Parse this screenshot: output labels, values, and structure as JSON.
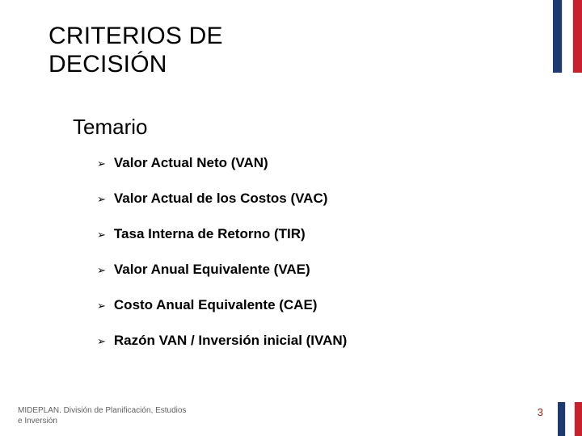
{
  "colors": {
    "flag_blue": "#1f3a6e",
    "flag_white": "#ffffff",
    "flag_red": "#c8202c",
    "text_black": "#000000",
    "footer_gray": "#606060",
    "pagenum_red": "#a02010",
    "background": "#ffffff"
  },
  "typography": {
    "title_fontsize": 30,
    "subtitle_fontsize": 26,
    "bullet_fontsize": 17,
    "bullet_weight": 700,
    "footer_fontsize": 10,
    "pagenum_fontsize": 13,
    "font_family": "Arial"
  },
  "title_line1": "CRITERIOS DE",
  "title_line2": "DECISIÓN",
  "subtitle": "Temario",
  "bullets": [
    "Valor Actual Neto  (VAN)",
    "Valor Actual de los Costos (VAC)",
    "Tasa Interna de Retorno   (TIR)",
    "Valor Anual Equivalente  (VAE)",
    "Costo Anual Equivalente (CAE)",
    "Razón VAN / Inversión inicial  (IVAN)"
  ],
  "bullet_glyph": "➢",
  "footer_line1": "MIDEPLAN. División de Planificación, Estudios",
  "footer_line2": "e Inversión",
  "page_number": "3"
}
